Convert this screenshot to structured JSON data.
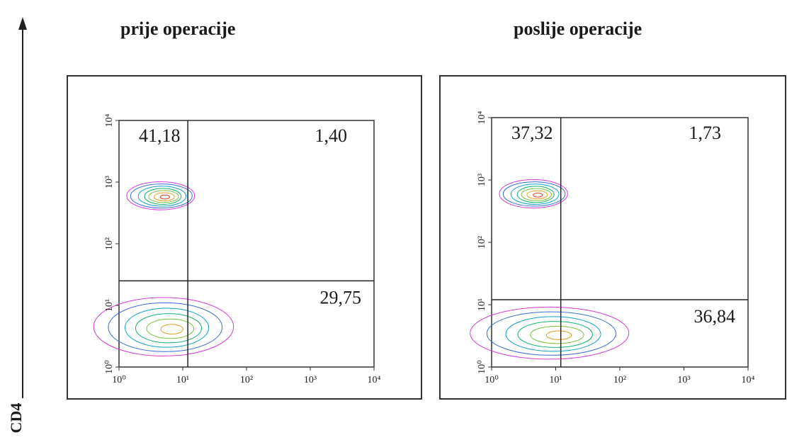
{
  "axis_label": "CD4",
  "chart_data": [
    {
      "type": "scatter",
      "subtype": "flow-cytometry-contour",
      "title": "prije operacije",
      "x_scale": "log",
      "y_scale": "log",
      "xlim": [
        1,
        10000
      ],
      "ylim": [
        1,
        10000
      ],
      "x_ticks": [
        "10⁰",
        "10¹",
        "10²",
        "10³",
        "10⁴"
      ],
      "y_ticks": [
        "10⁰",
        "10¹",
        "10²",
        "10³",
        "10⁴"
      ],
      "gate": {
        "x": 12,
        "y": 25
      },
      "quadrants": {
        "upper_left": "41,18",
        "upper_right": "1,40",
        "lower_right": "29,75"
      },
      "populations": [
        {
          "name": "",
          "cx": 4.5,
          "cy": 600,
          "spread_x": 0.28,
          "spread_y": 0.12,
          "levels": 7
        },
        {
          "name": "",
          "cx": 5,
          "cy": 4.5,
          "spread_x": 0.55,
          "spread_y": 0.25,
          "levels": 6
        }
      ]
    },
    {
      "type": "scatter",
      "subtype": "flow-cytometry-contour",
      "title": "poslije operacije",
      "x_scale": "log",
      "y_scale": "log",
      "xlim": [
        1,
        10000
      ],
      "ylim": [
        1,
        10000
      ],
      "x_ticks": [
        "10⁰",
        "10¹",
        "10²",
        "10³",
        "10⁴"
      ],
      "y_ticks": [
        "10⁰",
        "10¹",
        "10²",
        "10³",
        "10⁴"
      ],
      "gate": {
        "x": 12,
        "y": 12
      },
      "quadrants": {
        "upper_left": "37,32",
        "upper_right": "1,73",
        "lower_right": "36,84"
      },
      "populations": [
        {
          "name": "",
          "cx": 4.5,
          "cy": 600,
          "spread_x": 0.28,
          "spread_y": 0.12,
          "levels": 7
        },
        {
          "name": "",
          "cx": 8,
          "cy": 3.5,
          "spread_x": 0.62,
          "spread_y": 0.22,
          "levels": 6
        }
      ]
    }
  ],
  "colors": {
    "frame": "#333333",
    "gate": "#222222",
    "contours": [
      "#d63ad6",
      "#3a6cd6",
      "#12a0c8",
      "#16b36e",
      "#7cc23a",
      "#e0a020",
      "#d8402c"
    ]
  }
}
